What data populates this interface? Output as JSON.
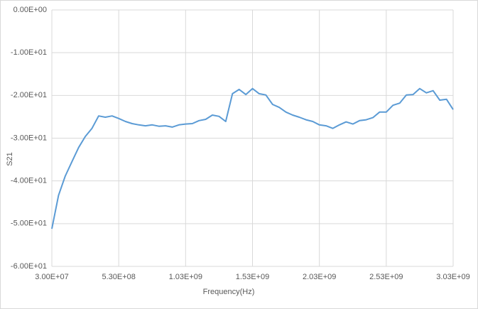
{
  "chart_data": {
    "type": "line",
    "x_label": "Frequency(Hz)",
    "y_label": "S21",
    "x": [
      30000000,
      80000000,
      130000000,
      180000000,
      230000000,
      280000000,
      330000000,
      380000000,
      430000000,
      480000000,
      530000000,
      580000000,
      630000000,
      680000000,
      730000000,
      780000000,
      830000000,
      880000000,
      930000000,
      980000000,
      1030000000,
      1080000000,
      1130000000,
      1180000000,
      1230000000,
      1280000000,
      1330000000,
      1380000000,
      1430000000,
      1480000000,
      1530000000,
      1580000000,
      1630000000,
      1680000000,
      1730000000,
      1780000000,
      1830000000,
      1880000000,
      1930000000,
      1980000000,
      2030000000,
      2080000000,
      2130000000,
      2180000000,
      2230000000,
      2280000000,
      2330000000,
      2380000000,
      2430000000,
      2480000000,
      2530000000,
      2580000000,
      2630000000,
      2680000000,
      2730000000,
      2780000000,
      2830000000,
      2880000000,
      2930000000,
      2980000000,
      3030000000
    ],
    "series": [
      {
        "name": "S21",
        "color": "#5b9bd5",
        "values": [
          -51.2,
          -43.4,
          -38.9,
          -35.5,
          -32.2,
          -29.6,
          -27.7,
          -24.8,
          -25.1,
          -24.8,
          -25.4,
          -26.1,
          -26.6,
          -26.9,
          -27.1,
          -26.9,
          -27.2,
          -27.1,
          -27.4,
          -26.9,
          -26.7,
          -26.6,
          -25.9,
          -25.6,
          -24.6,
          -24.9,
          -26.1,
          -19.6,
          -18.6,
          -19.8,
          -18.4,
          -19.6,
          -19.9,
          -22.1,
          -22.8,
          -23.9,
          -24.6,
          -25.1,
          -25.7,
          -26.1,
          -26.9,
          -27.1,
          -27.7,
          -26.9,
          -26.2,
          -26.7,
          -25.9,
          -25.7,
          -25.2,
          -23.9,
          -23.9,
          -22.3,
          -21.8,
          -19.9,
          -19.8,
          -18.4,
          -19.4,
          -18.9,
          -21.1,
          -20.9,
          -23.3
        ]
      }
    ],
    "xlim": [
      30000000,
      3030000000
    ],
    "xticks": [
      {
        "value": 30000000,
        "label": "3.00E+07"
      },
      {
        "value": 530000000,
        "label": "5.30E+08"
      },
      {
        "value": 1030000000,
        "label": "1.03E+09"
      },
      {
        "value": 1530000000,
        "label": "1.53E+09"
      },
      {
        "value": 2030000000,
        "label": "2.03E+09"
      },
      {
        "value": 2530000000,
        "label": "2.53E+09"
      },
      {
        "value": 3030000000,
        "label": "3.03E+09"
      }
    ],
    "ylim": [
      -60,
      0
    ],
    "yticks": [
      {
        "value": 0,
        "label": "0.00E+00"
      },
      {
        "value": -10,
        "label": "-1.00E+01"
      },
      {
        "value": -20,
        "label": "-2.00E+01"
      },
      {
        "value": -30,
        "label": "-3.00E+01"
      },
      {
        "value": -40,
        "label": "-4.00E+01"
      },
      {
        "value": -50,
        "label": "-5.00E+01"
      },
      {
        "value": -60,
        "label": "-6.00E+01"
      }
    ],
    "grid": true
  }
}
